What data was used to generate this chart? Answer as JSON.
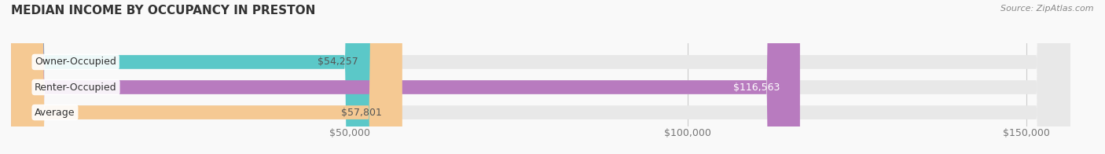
{
  "title": "MEDIAN INCOME BY OCCUPANCY IN PRESTON",
  "source": "Source: ZipAtlas.com",
  "categories": [
    "Owner-Occupied",
    "Renter-Occupied",
    "Average"
  ],
  "values": [
    54257,
    116563,
    57801
  ],
  "labels": [
    "$54,257",
    "$116,563",
    "$57,801"
  ],
  "bar_colors": [
    "#5bc8c8",
    "#b87bbf",
    "#f5c993"
  ],
  "bar_bg_color": "#e8e8e8",
  "label_colors": [
    "#555555",
    "#ffffff",
    "#555555"
  ],
  "x_ticks": [
    0,
    50000,
    100000,
    150000
  ],
  "x_tick_labels": [
    "",
    "$50,000",
    "$100,000",
    "$150,000"
  ],
  "xlim": [
    0,
    160000
  ],
  "background_color": "#f9f9f9",
  "title_fontsize": 11,
  "label_fontsize": 9,
  "tick_fontsize": 9,
  "source_fontsize": 8
}
